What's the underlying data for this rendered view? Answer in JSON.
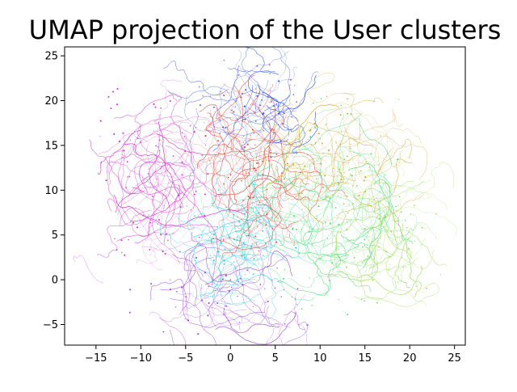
{
  "chart_data": {
    "type": "scatter",
    "title": "UMAP projection of the User clusters",
    "xlabel": "",
    "ylabel": "",
    "xlim": [
      -18.5,
      26.2
    ],
    "ylim": [
      -7.3,
      26.0
    ],
    "x_ticks": [
      -15,
      -10,
      -5,
      0,
      5,
      10,
      15,
      20,
      25
    ],
    "y_ticks": [
      -5,
      0,
      5,
      10,
      15,
      20,
      25
    ],
    "grid": false,
    "legend": "none",
    "point_style": "thin trajectory curves built from tiny markers",
    "series": [
      {
        "color": "#cc33cc",
        "center": [
          -8,
          11
        ],
        "spread": [
          3.2,
          4.8
        ],
        "density": 1.0
      },
      {
        "color": "#9933dd",
        "center": [
          0,
          -1.5
        ],
        "spread": [
          4.0,
          1.8
        ],
        "density": 0.55
      },
      {
        "color": "#33c9dd",
        "center": [
          0.5,
          4.5
        ],
        "spread": [
          2.2,
          2.0
        ],
        "density": 0.7
      },
      {
        "color": "#dd4433",
        "center": [
          2.5,
          13
        ],
        "spread": [
          2.0,
          5.0
        ],
        "density": 0.9
      },
      {
        "color": "#3355dd",
        "center": [
          2.5,
          19.5
        ],
        "spread": [
          2.5,
          2.0
        ],
        "density": 0.6
      },
      {
        "color": "#55dd77",
        "center": [
          11,
          7.5
        ],
        "spread": [
          3.2,
          4.5
        ],
        "density": 1.0
      },
      {
        "color": "#ccaa33",
        "center": [
          12,
          13.5
        ],
        "spread": [
          2.5,
          3.0
        ],
        "density": 0.7
      },
      {
        "color": "#99dd55",
        "center": [
          18,
          5
        ],
        "spread": [
          1.8,
          3.0
        ],
        "density": 0.55
      }
    ]
  }
}
